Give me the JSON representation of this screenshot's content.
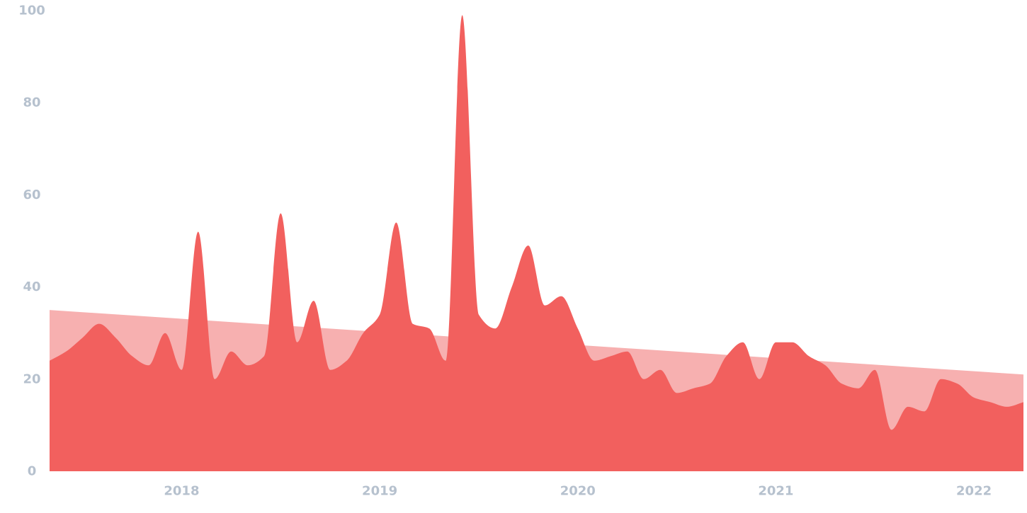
{
  "colors": {
    "trend": "#f7b0b0",
    "area": "#f2605e",
    "tick_label": "#b6c1ce"
  },
  "chart_data": {
    "type": "area",
    "title": "",
    "xlabel": "",
    "ylabel": "",
    "ylim": [
      0,
      100
    ],
    "xlim": [
      "2017-05",
      "2022-04"
    ],
    "y_ticks": [
      "0",
      "20",
      "40",
      "60",
      "80",
      "100"
    ],
    "x_ticks": [
      "2018",
      "2019",
      "2020",
      "2021",
      "2022"
    ],
    "grid": false,
    "legend": "none",
    "series": [
      {
        "role": "monthly",
        "style": "smooth-filled-area",
        "x": [
          "2017-05",
          "2017-06",
          "2017-07",
          "2017-08",
          "2017-09",
          "2017-10",
          "2017-11",
          "2017-12",
          "2018-01",
          "2018-02",
          "2018-03",
          "2018-04",
          "2018-05",
          "2018-06",
          "2018-07",
          "2018-08",
          "2018-09",
          "2018-10",
          "2018-11",
          "2018-12",
          "2019-01",
          "2019-02",
          "2019-03",
          "2019-04",
          "2019-05",
          "2019-06",
          "2019-07",
          "2019-08",
          "2019-09",
          "2019-10",
          "2019-11",
          "2019-12",
          "2020-01",
          "2020-02",
          "2020-03",
          "2020-04",
          "2020-05",
          "2020-06",
          "2020-07",
          "2020-08",
          "2020-09",
          "2020-10",
          "2020-11",
          "2020-12",
          "2021-01",
          "2021-02",
          "2021-03",
          "2021-04",
          "2021-05",
          "2021-06",
          "2021-07",
          "2021-08",
          "2021-09",
          "2021-10",
          "2021-11",
          "2021-12",
          "2022-01",
          "2022-02",
          "2022-03",
          "2022-04"
        ],
        "values": [
          24,
          26,
          29,
          32,
          29,
          25,
          23,
          30,
          22,
          52,
          20,
          26,
          23,
          25,
          56,
          28,
          37,
          22,
          24,
          30,
          34,
          54,
          32,
          31,
          24,
          99,
          34,
          31,
          40,
          49,
          36,
          38,
          31,
          24,
          25,
          26,
          20,
          22,
          17,
          18,
          19,
          25,
          28,
          20,
          28,
          28,
          25,
          23,
          19,
          18,
          22,
          9,
          14,
          13,
          20,
          19,
          16,
          15,
          14,
          15
        ]
      },
      {
        "role": "trend",
        "style": "linear-filled-area",
        "x": [
          "2017-05",
          "2022-04"
        ],
        "values": [
          35,
          21
        ]
      }
    ]
  }
}
